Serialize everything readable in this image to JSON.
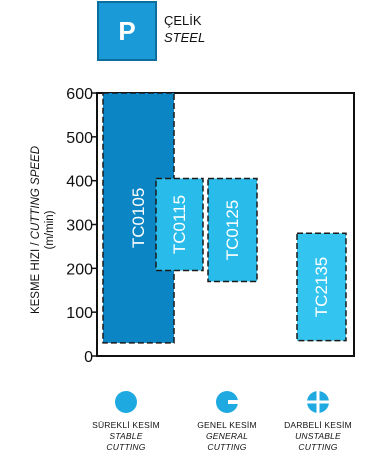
{
  "material": {
    "code": "P",
    "name_tr": "ÇELİK",
    "name_en": "STEEL"
  },
  "colors": {
    "badge": "#1a9ad6",
    "tc0105": "#0c85c4",
    "light": "#29bcea",
    "lighter": "#33c4ef"
  },
  "chart_data": {
    "type": "bar",
    "ylabel_tr": "KESME HIZI / ",
    "ylabel_en": "CUTTING SPEED",
    "ylabel_unit": "(m/min)",
    "ylim": [
      0,
      600
    ],
    "yticks": [
      "0",
      "100",
      "200",
      "300",
      "400",
      "500",
      "600"
    ],
    "series": [
      {
        "name": "TC0105",
        "low": 30,
        "high": 600,
        "stability": "stable"
      },
      {
        "name": "TC0115",
        "low": 195,
        "high": 405,
        "stability": "general"
      },
      {
        "name": "TC0125",
        "low": 170,
        "high": 405,
        "stability": "general"
      },
      {
        "name": "TC2135",
        "low": 35,
        "high": 280,
        "stability": "unstable"
      }
    ]
  },
  "legend": [
    {
      "tr": "SÜREKLİ KESİM",
      "en1": "STABLE",
      "en2": "CUTTING",
      "icon": "full-circle-icon"
    },
    {
      "tr": "GENEL KESİM",
      "en1": "GENERAL",
      "en2": "CUTTING",
      "icon": "notched-circle-icon"
    },
    {
      "tr": "DARBELİ KESİM",
      "en1": "UNSTABLE",
      "en2": "CUTTING",
      "icon": "cross-cut-circle-icon"
    }
  ]
}
